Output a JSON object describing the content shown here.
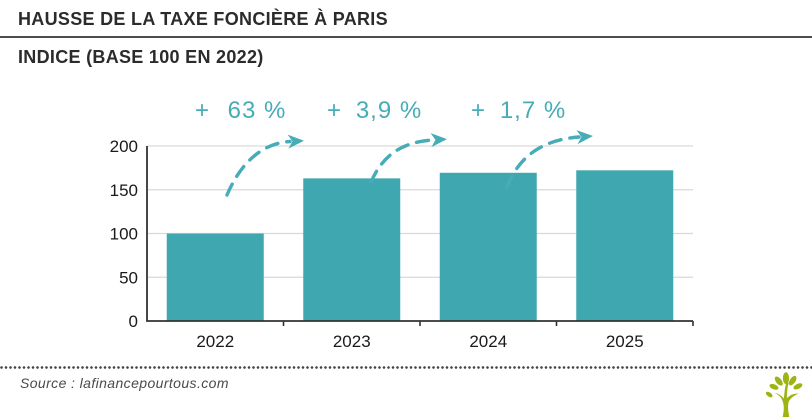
{
  "header": {
    "title": "HAUSSE DE LA TAXE FONCIÈRE À PARIS",
    "subtitle": "INDICE (BASE 100 EN 2022)"
  },
  "chart_data": {
    "type": "bar",
    "title": "HAUSSE DE LA TAXE FONCIÈRE À PARIS",
    "subtitle": "INDICE (BASE 100 EN 2022)",
    "categories": [
      "2022",
      "2023",
      "2024",
      "2025"
    ],
    "values": [
      100,
      163,
      169.4,
      172.2
    ],
    "yticks": [
      0,
      50,
      100,
      150,
      200
    ],
    "ylim": [
      0,
      200
    ],
    "xlabel": "",
    "ylabel": "",
    "grid": "horizontal",
    "legend": "none",
    "bar_color": "#3fa7b0",
    "annotation_color": "#46acb8",
    "axis_color": "#333333",
    "grid_color": "#d9d9d9",
    "annotations": [
      {
        "text": "+ 63 %",
        "sign": "+",
        "value": "63 %"
      },
      {
        "text": "+ 3,9 %",
        "sign": "+",
        "value": "3,9 %"
      },
      {
        "text": "+ 1,7 %",
        "sign": "+",
        "value": "1,7 %"
      }
    ]
  },
  "footer": {
    "source": "Source : lafinancepourtous.com",
    "logo": "lafinancepourtous-tree-logo",
    "logo_color": "#9db414"
  }
}
